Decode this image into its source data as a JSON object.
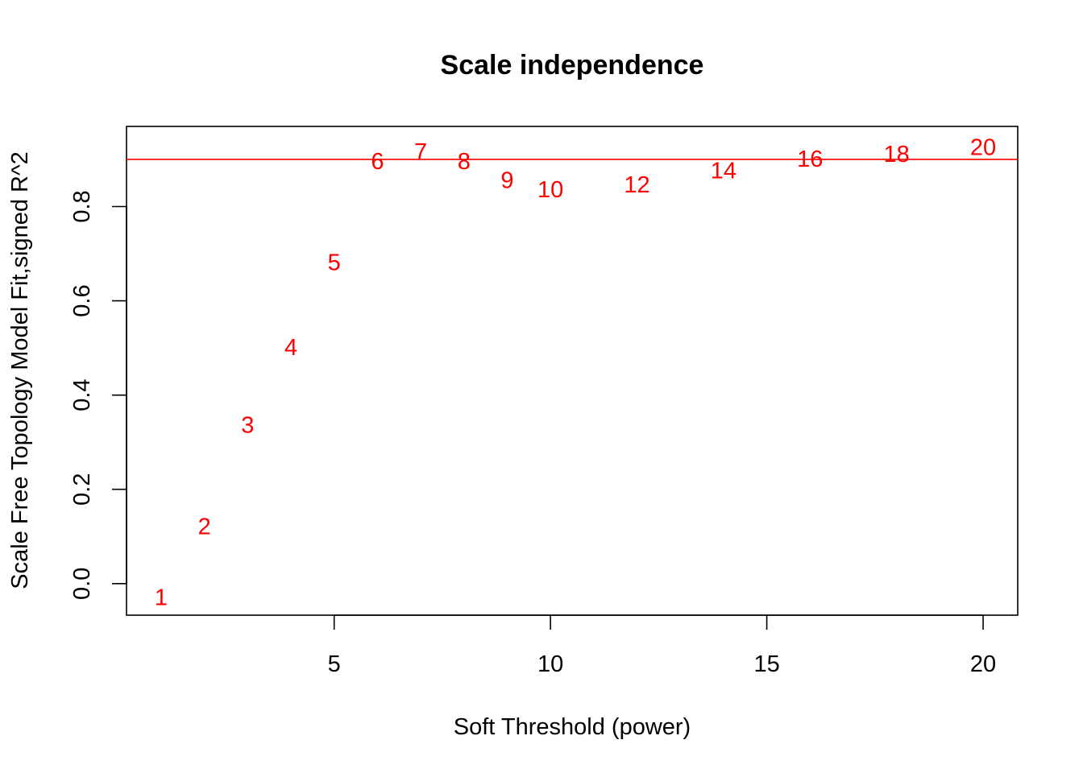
{
  "chart_data": {
    "type": "scatter",
    "title": "Scale independence",
    "xlabel": "Soft Threshold (power)",
    "ylabel": "Scale Free Topology Model Fit,signed R^2",
    "xlim": [
      0.2,
      20.8
    ],
    "ylim": [
      -0.067,
      0.97
    ],
    "x_ticks": [
      5,
      10,
      15,
      20
    ],
    "y_ticks": [
      0.0,
      0.2,
      0.4,
      0.6,
      0.8
    ],
    "grid": false,
    "legend": "none",
    "point_color": "#ff0000",
    "reference_line": {
      "y": 0.9,
      "color": "#ff0000"
    },
    "points": [
      {
        "x": 1,
        "y": -0.03,
        "label": "1"
      },
      {
        "x": 2,
        "y": 0.12,
        "label": "2"
      },
      {
        "x": 3,
        "y": 0.335,
        "label": "3"
      },
      {
        "x": 4,
        "y": 0.5,
        "label": "4"
      },
      {
        "x": 5,
        "y": 0.68,
        "label": "5"
      },
      {
        "x": 6,
        "y": 0.895,
        "label": "6"
      },
      {
        "x": 7,
        "y": 0.915,
        "label": "7"
      },
      {
        "x": 8,
        "y": 0.895,
        "label": "8"
      },
      {
        "x": 9,
        "y": 0.855,
        "label": "9"
      },
      {
        "x": 10,
        "y": 0.835,
        "label": "10"
      },
      {
        "x": 12,
        "y": 0.845,
        "label": "12"
      },
      {
        "x": 14,
        "y": 0.875,
        "label": "14"
      },
      {
        "x": 16,
        "y": 0.9,
        "label": "16"
      },
      {
        "x": 18,
        "y": 0.91,
        "label": "18"
      },
      {
        "x": 20,
        "y": 0.925,
        "label": "20"
      }
    ]
  }
}
